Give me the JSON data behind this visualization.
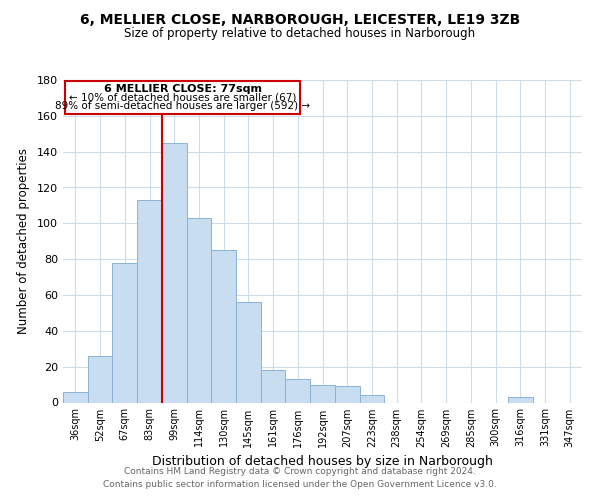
{
  "title": "6, MELLIER CLOSE, NARBOROUGH, LEICESTER, LE19 3ZB",
  "subtitle": "Size of property relative to detached houses in Narborough",
  "xlabel": "Distribution of detached houses by size in Narborough",
  "ylabel": "Number of detached properties",
  "bar_color": "#c8ddf0",
  "bar_edge_color": "#8ab4d4",
  "background_color": "#ffffff",
  "grid_color": "#ccdde8",
  "annotation_box_edge": "#cc0000",
  "vline_color": "#cc0000",
  "categories": [
    "36sqm",
    "52sqm",
    "67sqm",
    "83sqm",
    "99sqm",
    "114sqm",
    "130sqm",
    "145sqm",
    "161sqm",
    "176sqm",
    "192sqm",
    "207sqm",
    "223sqm",
    "238sqm",
    "254sqm",
    "269sqm",
    "285sqm",
    "300sqm",
    "316sqm",
    "331sqm",
    "347sqm"
  ],
  "values": [
    6,
    26,
    78,
    113,
    145,
    103,
    85,
    56,
    18,
    13,
    10,
    9,
    4,
    0,
    0,
    0,
    0,
    0,
    3,
    0,
    0
  ],
  "ylim": [
    0,
    180
  ],
  "yticks": [
    0,
    20,
    40,
    60,
    80,
    100,
    120,
    140,
    160,
    180
  ],
  "vline_position": 3.5,
  "annotation_text_line1": "6 MELLIER CLOSE: 77sqm",
  "annotation_text_line2": "← 10% of detached houses are smaller (67)",
  "annotation_text_line3": "89% of semi-detached houses are larger (592) →",
  "footer_line1": "Contains HM Land Registry data © Crown copyright and database right 2024.",
  "footer_line2": "Contains public sector information licensed under the Open Government Licence v3.0."
}
